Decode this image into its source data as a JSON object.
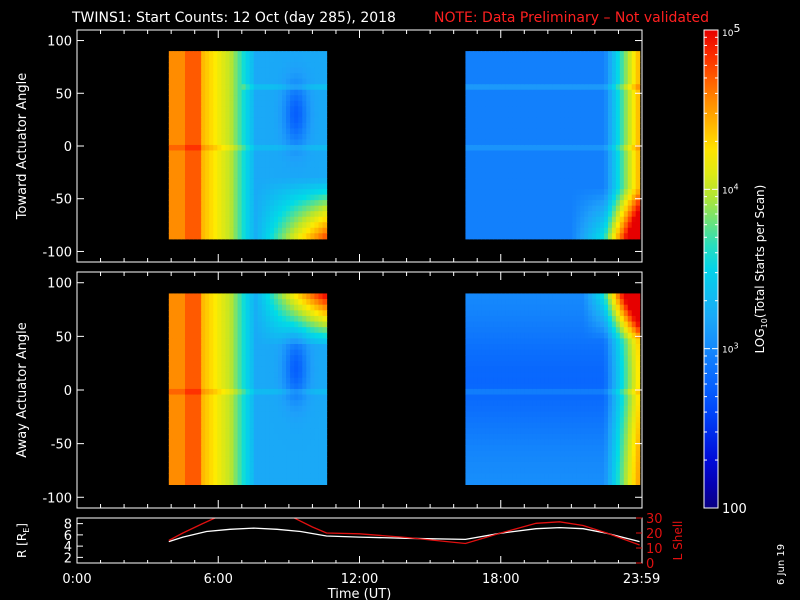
{
  "title": "TWINS1: Start Counts: 12 Oct (day 285), 2018",
  "note": "NOTE: Data Preliminary – Not validated",
  "date_stamp": "6 Jun 19",
  "colors": {
    "background": "#000000",
    "note": "#ff2020",
    "r_line": "#ffffff",
    "lshell_line": "#e01010"
  },
  "chart_data": [
    {
      "type": "heatmap",
      "name": "toward",
      "ylabel": "Toward Actuator Angle",
      "ylim": [
        -110,
        110
      ],
      "yticks": [
        -100,
        -50,
        0,
        50,
        100
      ],
      "xlim": [
        0,
        24
      ],
      "data_ylim": [
        -88,
        90
      ],
      "blocks_hours": [
        [
          3.9,
          10.6
        ],
        [
          16.5,
          23.9
        ]
      ],
      "log_range": [
        2.0,
        5.0
      ]
    },
    {
      "type": "heatmap",
      "name": "away",
      "ylabel": "Away Actuator Angle",
      "ylim": [
        -110,
        110
      ],
      "yticks": [
        -100,
        -50,
        0,
        50,
        100
      ],
      "xlim": [
        0,
        24
      ],
      "data_ylim": [
        -88,
        90
      ],
      "blocks_hours": [
        [
          3.9,
          10.6
        ],
        [
          16.5,
          23.9
        ]
      ],
      "log_range": [
        2.0,
        5.0
      ]
    },
    {
      "type": "line",
      "name": "orbit",
      "ylabel": "R [R",
      "ylabel_sub": "E",
      "ylabel_end": "]",
      "ylim_left": [
        1,
        9
      ],
      "yticks_left": [
        2,
        4,
        6,
        8
      ],
      "y2label": "L Shell",
      "ylim_right": [
        0,
        30
      ],
      "yticks_right": [
        0,
        10,
        20,
        30
      ],
      "xlabel": "Time (UT)",
      "xlim": [
        0,
        24
      ],
      "xticks": [
        0,
        6,
        12,
        18,
        23.983
      ],
      "xtick_labels": [
        "0:00",
        "6:00",
        "12:00",
        "18:00",
        "23:59"
      ],
      "series": [
        {
          "axis": "left",
          "x": [
            3.9,
            4.5,
            5.5,
            6.5,
            7.5,
            8.5,
            9.5,
            10.6,
            12.0,
            14.0,
            16.5,
            18.0,
            19.5,
            20.5,
            21.5,
            22.5,
            23.9
          ],
          "values": [
            4.8,
            5.6,
            6.6,
            7.0,
            7.2,
            7.0,
            6.6,
            5.8,
            5.6,
            5.4,
            5.2,
            6.3,
            7.1,
            7.3,
            7.1,
            6.3,
            4.8
          ]
        },
        {
          "axis": "right",
          "x": [
            3.9,
            4.5,
            5.3,
            6.0,
            9.1,
            10.0,
            10.6,
            12.0,
            14.0,
            16.5,
            18.0,
            19.5,
            20.5,
            21.5,
            22.5,
            23.9
          ],
          "values": [
            15,
            20,
            26,
            31,
            31,
            24,
            20,
            19.5,
            17,
            13,
            20,
            26.5,
            27.5,
            25,
            20,
            12
          ]
        }
      ]
    },
    {
      "type": "colorbar",
      "label": "LOG",
      "label_sub": "10",
      "label_end": "(Total Starts per Scan)",
      "log_range": [
        2.0,
        5.0
      ],
      "ticks": [
        {
          "value": 2,
          "label": "100"
        },
        {
          "value": 3,
          "label": "10",
          "sup": "3"
        },
        {
          "value": 4,
          "label": "10",
          "sup": "4"
        },
        {
          "value": 5,
          "label": "10",
          "sup": "5"
        }
      ]
    }
  ]
}
